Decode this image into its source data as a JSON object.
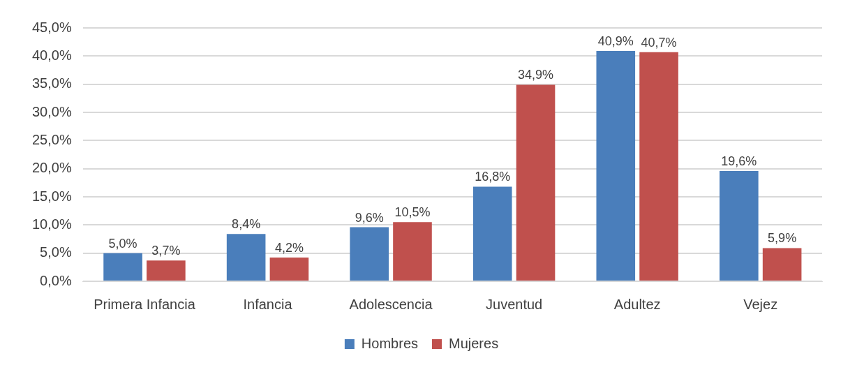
{
  "chart_data": {
    "type": "bar",
    "categories": [
      "Primera Infancia",
      "Infancia",
      "Adolescencia",
      "Juventud",
      "Adultez",
      "Vejez"
    ],
    "series": [
      {
        "name": "Hombres",
        "color": "#4a7ebb",
        "values": [
          5.0,
          8.4,
          9.6,
          16.8,
          40.9,
          19.6
        ],
        "value_labels": [
          "5,0%",
          "8,4%",
          "9,6%",
          "16,8%",
          "40,9%",
          "19,6%"
        ]
      },
      {
        "name": "Mujeres",
        "color": "#c0504d",
        "values": [
          3.7,
          4.2,
          10.5,
          34.9,
          40.7,
          5.9
        ],
        "value_labels": [
          "3,7%",
          "4,2%",
          "10,5%",
          "34,9%",
          "40,7%",
          "5,9%"
        ]
      }
    ],
    "ylim": [
      0,
      45
    ],
    "yticks": [
      {
        "value": 0,
        "label": "0,0%"
      },
      {
        "value": 5,
        "label": "5,0%"
      },
      {
        "value": 10,
        "label": "10,0%"
      },
      {
        "value": 15,
        "label": "15,0%"
      },
      {
        "value": 20,
        "label": "20,0%"
      },
      {
        "value": 25,
        "label": "25,0%"
      },
      {
        "value": 30,
        "label": "30,0%"
      },
      {
        "value": 35,
        "label": "35,0%"
      },
      {
        "value": 40,
        "label": "40,0%"
      },
      {
        "value": 45,
        "label": "45,0%"
      }
    ],
    "grid": "y",
    "legend": "bottom"
  }
}
